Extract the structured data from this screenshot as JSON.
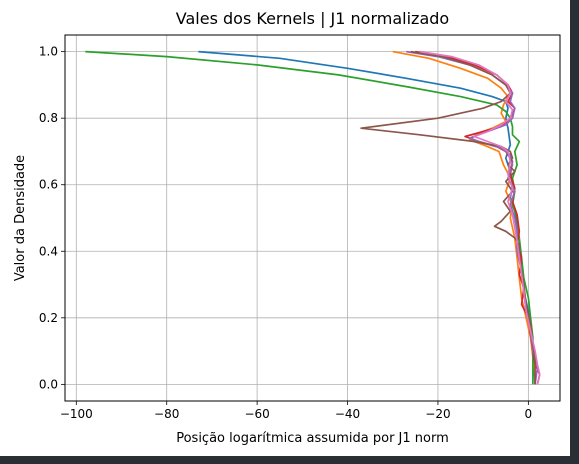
{
  "chart_data": {
    "type": "line",
    "title": "Vales dos Kernels | J1 normalizado",
    "xlabel": "Posição logarítmica assumida por J1 norm",
    "ylabel": "Valor da Densidade",
    "xlim": [
      -102.5,
      7
    ],
    "ylim": [
      -0.05,
      1.05
    ],
    "xticks": [
      -100,
      -80,
      -60,
      -40,
      -20,
      0
    ],
    "xtick_labels": [
      "−100",
      "−80",
      "−60",
      "−40",
      "−20",
      "0"
    ],
    "yticks": [
      0.0,
      0.2,
      0.4,
      0.6,
      0.8,
      1.0
    ],
    "ytick_labels": [
      "0.0",
      "0.2",
      "0.4",
      "0.6",
      "0.8",
      "1.0"
    ],
    "grid": true,
    "series": [
      {
        "color": "#1f77b4",
        "points": [
          [
            -73,
            1.0
          ],
          [
            -55,
            0.98
          ],
          [
            -40,
            0.95
          ],
          [
            -27,
            0.92
          ],
          [
            -15,
            0.89
          ],
          [
            -8,
            0.865
          ],
          [
            -5,
            0.85
          ],
          [
            -4.5,
            0.83
          ],
          [
            -5,
            0.8
          ],
          [
            -4.5,
            0.77
          ],
          [
            -4,
            0.72
          ],
          [
            -5,
            0.68
          ],
          [
            -4,
            0.64
          ],
          [
            -3.5,
            0.6
          ],
          [
            -4,
            0.56
          ],
          [
            -3,
            0.52
          ],
          [
            -2.5,
            0.48
          ],
          [
            -2.5,
            0.44
          ],
          [
            -2,
            0.4
          ],
          [
            -1.5,
            0.34
          ],
          [
            -1,
            0.28
          ],
          [
            0,
            0.22
          ],
          [
            0.5,
            0.16
          ],
          [
            1,
            0.1
          ],
          [
            1.2,
            0.05
          ],
          [
            1.5,
            0.0
          ]
        ]
      },
      {
        "color": "#ff7f0e",
        "points": [
          [
            -30,
            1.0
          ],
          [
            -22,
            0.98
          ],
          [
            -15,
            0.95
          ],
          [
            -9,
            0.92
          ],
          [
            -6,
            0.89
          ],
          [
            -4.5,
            0.865
          ],
          [
            -5.5,
            0.84
          ],
          [
            -6,
            0.815
          ],
          [
            -5,
            0.79
          ],
          [
            -8,
            0.77
          ],
          [
            -11,
            0.755
          ],
          [
            -13,
            0.735
          ],
          [
            -10,
            0.72
          ],
          [
            -6.5,
            0.7
          ],
          [
            -5.5,
            0.66
          ],
          [
            -4,
            0.62
          ],
          [
            -5,
            0.58
          ],
          [
            -3.5,
            0.54
          ],
          [
            -4,
            0.5
          ],
          [
            -3,
            0.44
          ],
          [
            -2.5,
            0.38
          ],
          [
            -2,
            0.32
          ],
          [
            -1.5,
            0.26
          ],
          [
            -0.5,
            0.2
          ],
          [
            0.5,
            0.14
          ],
          [
            1,
            0.08
          ],
          [
            1.5,
            0.03
          ],
          [
            1.5,
            0.0
          ]
        ]
      },
      {
        "color": "#2ca02c",
        "points": [
          [
            -98,
            1.0
          ],
          [
            -80,
            0.985
          ],
          [
            -60,
            0.96
          ],
          [
            -42,
            0.93
          ],
          [
            -27,
            0.895
          ],
          [
            -15,
            0.865
          ],
          [
            -7,
            0.84
          ],
          [
            -5,
            0.82
          ],
          [
            -4,
            0.8
          ],
          [
            -3.5,
            0.775
          ],
          [
            -3.5,
            0.75
          ],
          [
            -2,
            0.73
          ],
          [
            -3,
            0.7
          ],
          [
            -2.5,
            0.66
          ],
          [
            -3.5,
            0.62
          ],
          [
            -3,
            0.58
          ],
          [
            -3.5,
            0.54
          ],
          [
            -2.5,
            0.5
          ],
          [
            -2,
            0.44
          ],
          [
            -1.5,
            0.38
          ],
          [
            -1,
            0.32
          ],
          [
            0,
            0.26
          ],
          [
            0.5,
            0.2
          ],
          [
            1,
            0.14
          ],
          [
            1,
            0.08
          ],
          [
            1,
            0.03
          ],
          [
            1,
            0.0
          ]
        ]
      },
      {
        "color": "#d62728",
        "points": [
          [
            -25,
            1.0
          ],
          [
            -18,
            0.985
          ],
          [
            -12,
            0.96
          ],
          [
            -7,
            0.93
          ],
          [
            -4.5,
            0.9
          ],
          [
            -3.5,
            0.875
          ],
          [
            -4.5,
            0.85
          ],
          [
            -3,
            0.83
          ],
          [
            -4,
            0.8
          ],
          [
            -6,
            0.775
          ],
          [
            -10,
            0.76
          ],
          [
            -14,
            0.745
          ],
          [
            -11,
            0.73
          ],
          [
            -7,
            0.715
          ],
          [
            -5,
            0.7
          ],
          [
            -3.5,
            0.67
          ],
          [
            -4,
            0.63
          ],
          [
            -3,
            0.59
          ],
          [
            -3.5,
            0.55
          ],
          [
            -2.5,
            0.51
          ],
          [
            -2,
            0.46
          ],
          [
            -2.5,
            0.42
          ],
          [
            -1.5,
            0.38
          ],
          [
            -2,
            0.33
          ],
          [
            -1,
            0.29
          ],
          [
            -1.5,
            0.24
          ],
          [
            0,
            0.2
          ],
          [
            0.5,
            0.15
          ],
          [
            1,
            0.1
          ],
          [
            1.5,
            0.06
          ],
          [
            2.5,
            0.03
          ],
          [
            2,
            0.0
          ]
        ]
      },
      {
        "color": "#9467bd",
        "points": [
          [
            -27,
            1.0
          ],
          [
            -20,
            0.985
          ],
          [
            -13,
            0.96
          ],
          [
            -8,
            0.93
          ],
          [
            -5,
            0.9
          ],
          [
            -3.5,
            0.875
          ],
          [
            -4,
            0.85
          ],
          [
            -3,
            0.83
          ],
          [
            -3.5,
            0.8
          ],
          [
            -5,
            0.78
          ],
          [
            -8,
            0.765
          ],
          [
            -11,
            0.75
          ],
          [
            -13,
            0.74
          ],
          [
            -10,
            0.725
          ],
          [
            -6,
            0.71
          ],
          [
            -4,
            0.69
          ],
          [
            -3.5,
            0.66
          ],
          [
            -4.5,
            0.62
          ],
          [
            -3,
            0.58
          ],
          [
            -4,
            0.54
          ],
          [
            -3,
            0.5
          ],
          [
            -2.5,
            0.46
          ],
          [
            -2.5,
            0.4
          ],
          [
            -1.5,
            0.34
          ],
          [
            -1,
            0.28
          ],
          [
            -0.5,
            0.22
          ],
          [
            0.5,
            0.16
          ],
          [
            1,
            0.1
          ],
          [
            2,
            0.05
          ],
          [
            1.5,
            0.0
          ]
        ]
      },
      {
        "color": "#8c564b",
        "points": [
          [
            -26,
            1.0
          ],
          [
            -19,
            0.985
          ],
          [
            -13,
            0.96
          ],
          [
            -8,
            0.93
          ],
          [
            -5,
            0.9
          ],
          [
            -4,
            0.875
          ],
          [
            -6,
            0.85
          ],
          [
            -10,
            0.83
          ],
          [
            -20,
            0.8
          ],
          [
            -37,
            0.77
          ],
          [
            -24,
            0.75
          ],
          [
            -12,
            0.73
          ],
          [
            -6,
            0.715
          ],
          [
            -4,
            0.7
          ],
          [
            -3.5,
            0.68
          ],
          [
            -4.5,
            0.66
          ],
          [
            -3,
            0.64
          ],
          [
            -5,
            0.61
          ],
          [
            -3.5,
            0.58
          ],
          [
            -5.5,
            0.55
          ],
          [
            -4,
            0.52
          ],
          [
            -6,
            0.49
          ],
          [
            -7.5,
            0.475
          ],
          [
            -5,
            0.46
          ],
          [
            -3,
            0.44
          ],
          [
            -2,
            0.42
          ],
          [
            -2,
            0.38
          ],
          [
            -1.5,
            0.34
          ],
          [
            -1,
            0.3
          ],
          [
            -0.5,
            0.24
          ],
          [
            0.5,
            0.18
          ],
          [
            1,
            0.12
          ],
          [
            1.5,
            0.07
          ],
          [
            1.5,
            0.03
          ],
          [
            1.5,
            0.0
          ]
        ]
      },
      {
        "color": "#e377c2",
        "points": [
          [
            -24,
            1.0
          ],
          [
            -17,
            0.985
          ],
          [
            -11,
            0.96
          ],
          [
            -7,
            0.93
          ],
          [
            -4.5,
            0.9
          ],
          [
            -4,
            0.875
          ],
          [
            -5,
            0.85
          ],
          [
            -3.5,
            0.825
          ],
          [
            -4,
            0.8
          ],
          [
            -6,
            0.78
          ],
          [
            -9,
            0.76
          ],
          [
            -12,
            0.745
          ],
          [
            -9,
            0.73
          ],
          [
            -6,
            0.715
          ],
          [
            -4.5,
            0.7
          ],
          [
            -4,
            0.67
          ],
          [
            -4.5,
            0.63
          ],
          [
            -3.5,
            0.59
          ],
          [
            -4.5,
            0.55
          ],
          [
            -3.5,
            0.51
          ],
          [
            -3,
            0.47
          ],
          [
            -2.5,
            0.43
          ],
          [
            -2,
            0.38
          ],
          [
            -1.5,
            0.33
          ],
          [
            -1,
            0.28
          ],
          [
            -0.5,
            0.22
          ],
          [
            0.5,
            0.16
          ],
          [
            1.5,
            0.1
          ],
          [
            2,
            0.06
          ],
          [
            2.5,
            0.03
          ],
          [
            2,
            0.0
          ]
        ]
      }
    ]
  }
}
